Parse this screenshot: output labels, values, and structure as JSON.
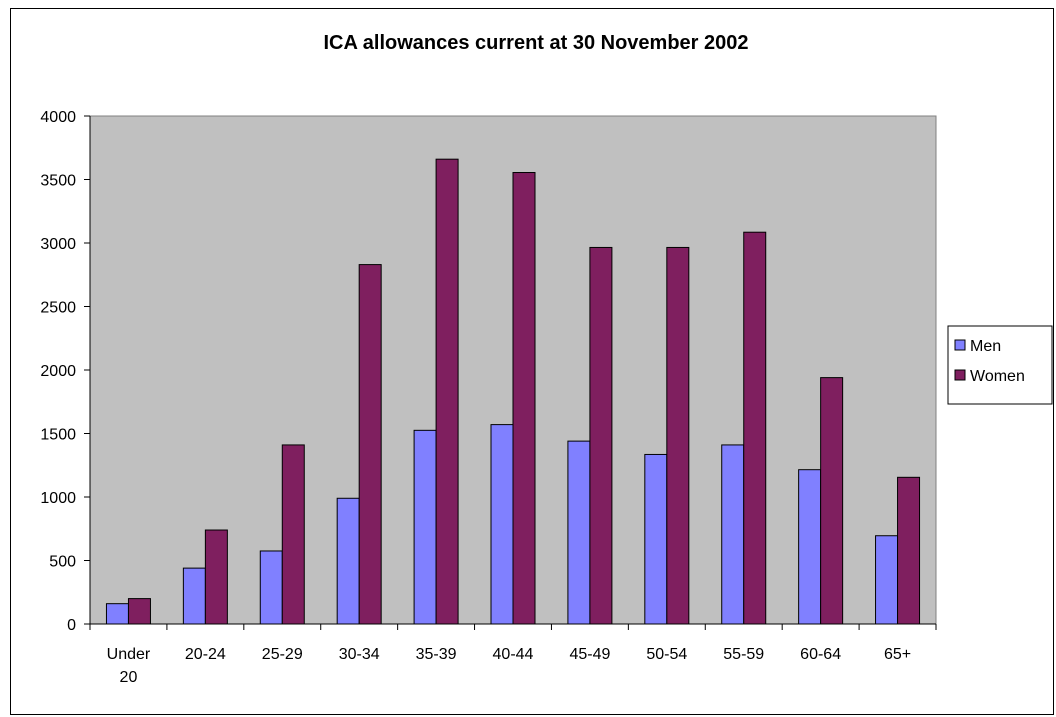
{
  "chart_data": {
    "type": "bar",
    "title": "ICA allowances current at 30 November 2002",
    "categories": [
      [
        "Under",
        "20"
      ],
      [
        "20-24"
      ],
      [
        "25-29"
      ],
      [
        "30-34"
      ],
      [
        "35-39"
      ],
      [
        "40-44"
      ],
      [
        "45-49"
      ],
      [
        "50-54"
      ],
      [
        "55-59"
      ],
      [
        "60-64"
      ],
      [
        "65+"
      ]
    ],
    "series": [
      {
        "name": "Men",
        "color": "#8080ff",
        "values": [
          160,
          440,
          575,
          990,
          1525,
          1570,
          1440,
          1335,
          1410,
          1215,
          695
        ]
      },
      {
        "name": "Women",
        "color": "#7f1f5f",
        "values": [
          200,
          740,
          1410,
          2830,
          3660,
          3555,
          2965,
          2965,
          3085,
          1940,
          1155
        ]
      }
    ],
    "ylim": [
      0,
      4000
    ],
    "yticks": [
      0,
      500,
      1000,
      1500,
      2000,
      2500,
      3000,
      3500,
      4000
    ],
    "xlabel": "",
    "ylabel": "",
    "plot_background": "#c0c0c0",
    "grid": false,
    "legend_position": "right"
  }
}
